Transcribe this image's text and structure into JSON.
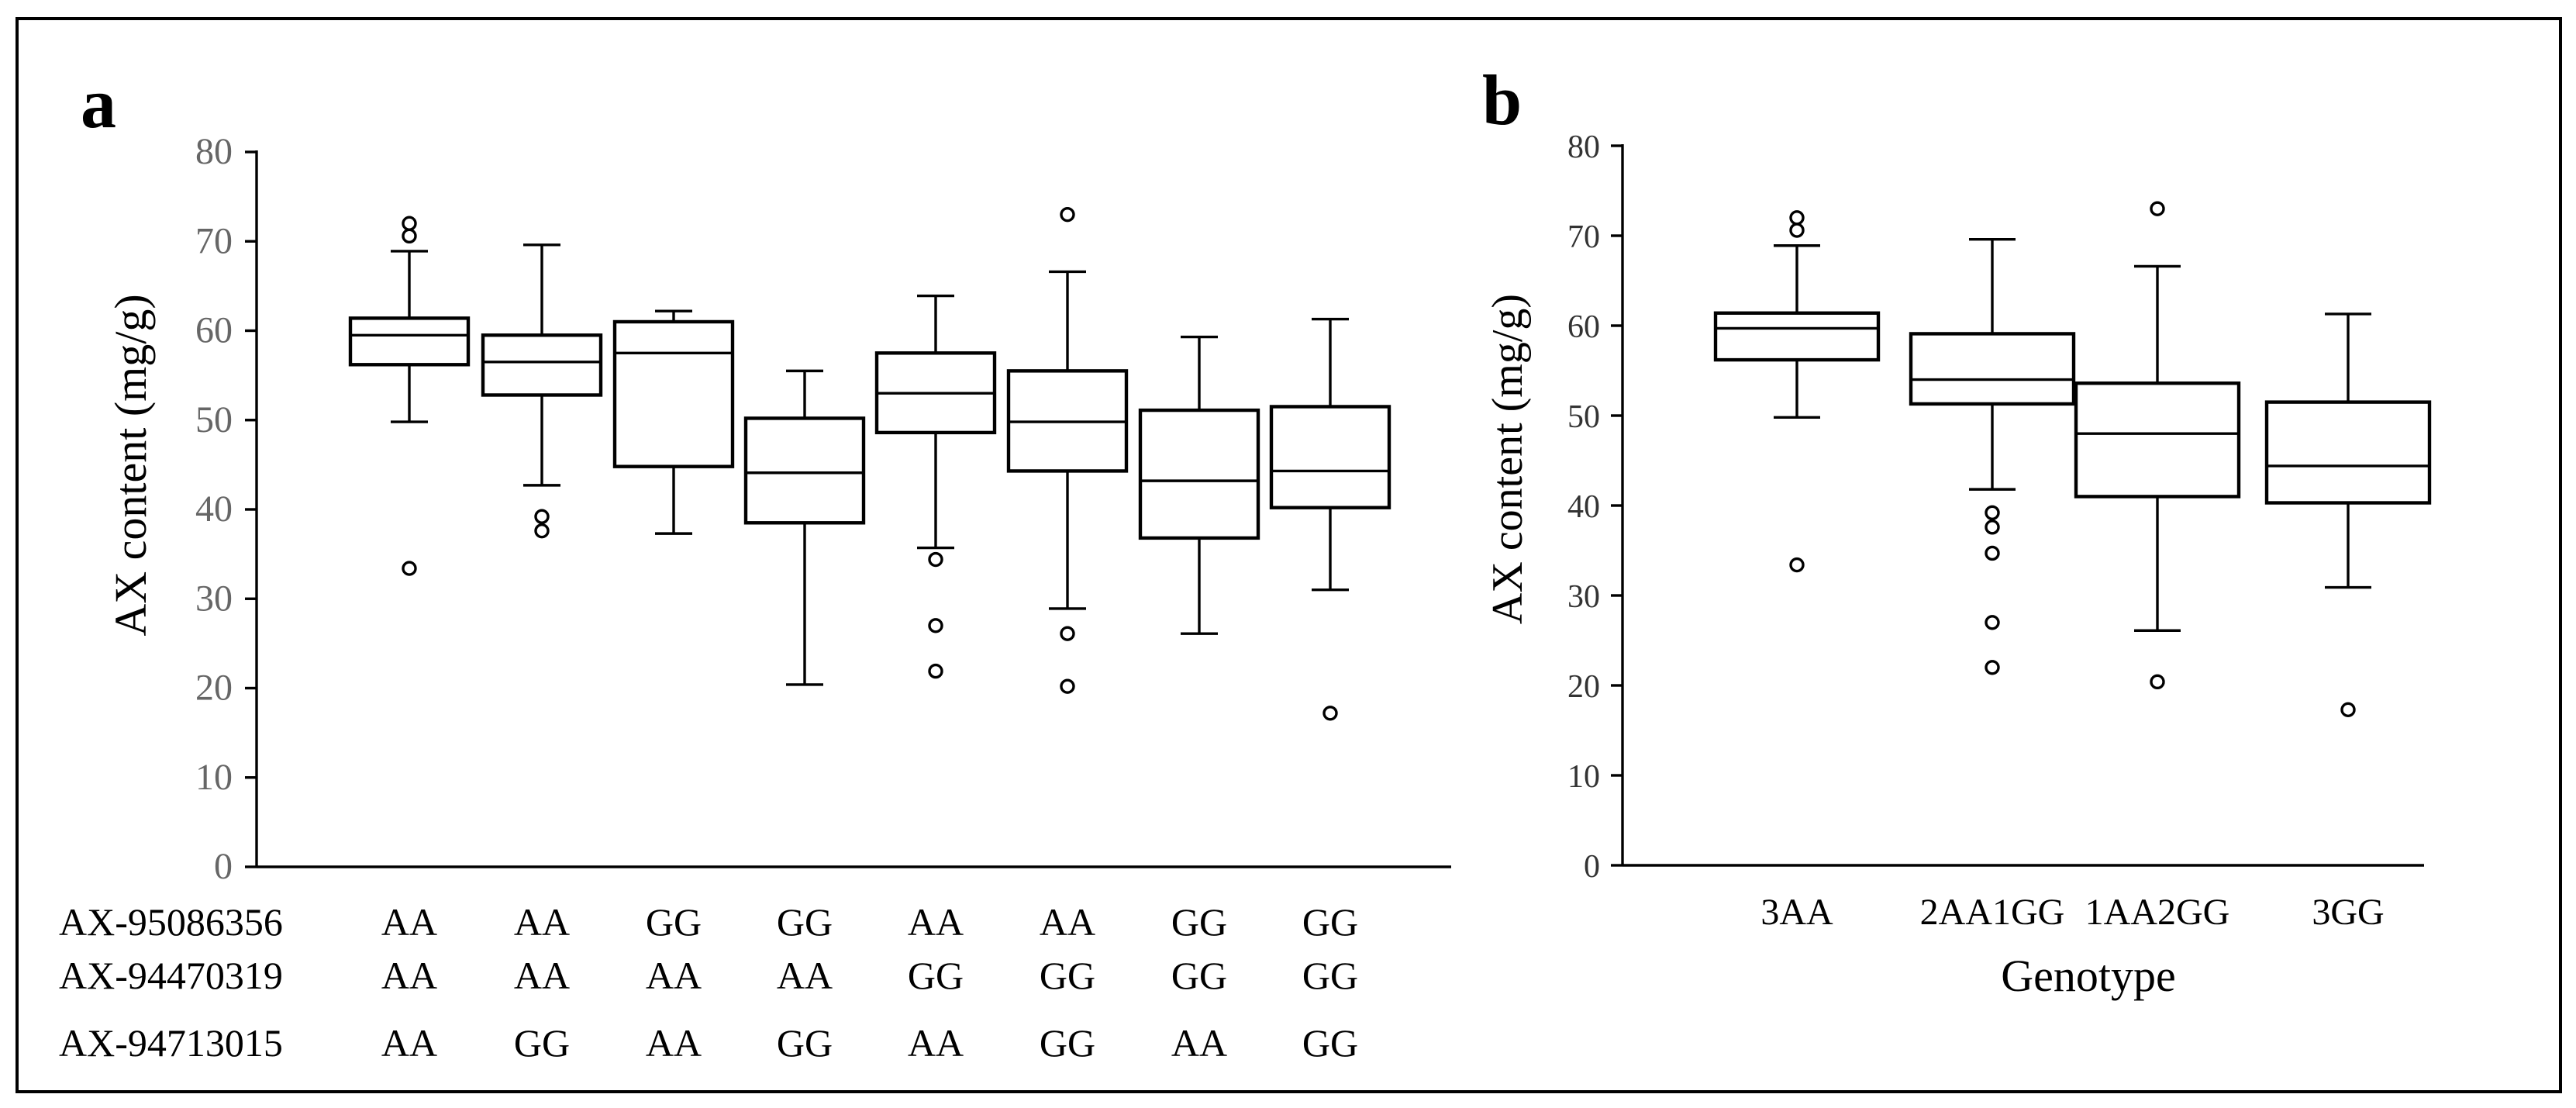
{
  "chart_data": [
    {
      "panel": "a",
      "type": "box",
      "ylabel": "AX content (mg/g)",
      "ylim": [
        0,
        80
      ],
      "yticks": [
        0,
        10,
        20,
        30,
        40,
        50,
        60,
        70,
        80
      ],
      "markers": [
        {
          "name": "AX-95086356",
          "genotypes": [
            "AA",
            "AA",
            "GG",
            "GG",
            "AA",
            "AA",
            "GG",
            "GG"
          ]
        },
        {
          "name": "AX-94470319",
          "genotypes": [
            "AA",
            "AA",
            "AA",
            "AA",
            "GG",
            "GG",
            "GG",
            "GG"
          ]
        },
        {
          "name": "AX-94713015",
          "genotypes": [
            "AA",
            "GG",
            "AA",
            "GG",
            "AA",
            "GG",
            "AA",
            "GG"
          ]
        }
      ],
      "boxes": [
        {
          "min": 49.8,
          "q1": 56.2,
          "median": 59.5,
          "q3": 61.4,
          "max": 68.9,
          "outliers": [
            72.0,
            70.6,
            33.4
          ]
        },
        {
          "min": 42.7,
          "q1": 52.8,
          "median": 56.5,
          "q3": 59.5,
          "max": 69.6,
          "outliers": [
            39.2,
            37.6
          ]
        },
        {
          "min": 37.3,
          "q1": 44.8,
          "median": 57.5,
          "q3": 61.0,
          "max": 62.2,
          "outliers": []
        },
        {
          "min": 20.4,
          "q1": 38.5,
          "median": 44.1,
          "q3": 50.2,
          "max": 55.5,
          "outliers": []
        },
        {
          "min": 35.7,
          "q1": 48.6,
          "median": 53.0,
          "q3": 57.5,
          "max": 63.9,
          "outliers": [
            34.4,
            27.0,
            21.9
          ]
        },
        {
          "min": 28.9,
          "q1": 44.3,
          "median": 49.8,
          "q3": 55.5,
          "max": 66.6,
          "outliers": [
            73.0,
            26.1,
            20.2
          ]
        },
        {
          "min": 26.1,
          "q1": 36.8,
          "median": 43.2,
          "q3": 51.1,
          "max": 59.3,
          "outliers": []
        },
        {
          "min": 31.0,
          "q1": 40.2,
          "median": 44.3,
          "q3": 51.5,
          "max": 61.3,
          "outliers": [
            17.2
          ]
        }
      ]
    },
    {
      "panel": "b",
      "type": "box",
      "ylabel": "AX content (mg/g)",
      "xlabel": "Genotype",
      "ylim": [
        0,
        80
      ],
      "yticks": [
        0,
        10,
        20,
        30,
        40,
        50,
        60,
        70,
        80
      ],
      "categories": [
        "3AA",
        "2AA1GG",
        "1AA2GG",
        "3GG"
      ],
      "boxes": [
        {
          "min": 49.8,
          "q1": 56.2,
          "median": 59.7,
          "q3": 61.4,
          "max": 68.9,
          "outliers": [
            72.0,
            70.6,
            33.4
          ]
        },
        {
          "min": 41.8,
          "q1": 51.3,
          "median": 54.0,
          "q3": 59.1,
          "max": 69.6,
          "outliers": [
            39.2,
            37.6,
            34.7,
            27.0,
            22.0
          ]
        },
        {
          "min": 26.1,
          "q1": 41.0,
          "median": 48.0,
          "q3": 53.6,
          "max": 66.6,
          "outliers": [
            73.0,
            20.4
          ]
        },
        {
          "min": 30.9,
          "q1": 40.3,
          "median": 44.4,
          "q3": 51.5,
          "max": 61.3,
          "outliers": [
            17.3
          ]
        }
      ]
    }
  ]
}
